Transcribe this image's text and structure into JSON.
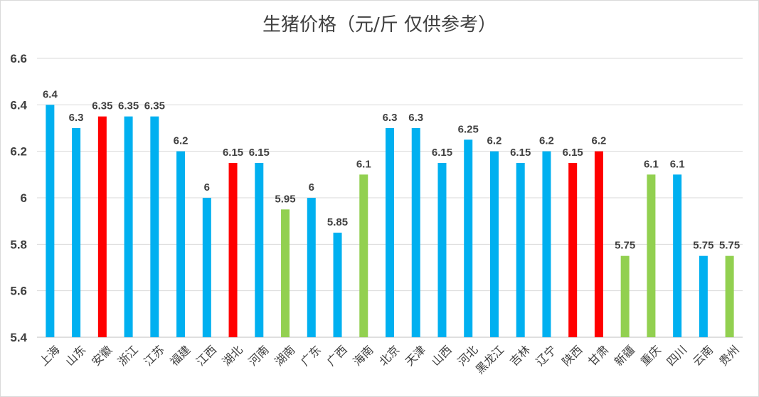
{
  "chart_data": {
    "type": "bar",
    "title": "生猪价格（元/斤 仅供参考）",
    "xlabel": "",
    "ylabel": "",
    "ylim": [
      5.4,
      6.6
    ],
    "yticks": [
      "5.4",
      "5.6",
      "5.8",
      "6",
      "6.2",
      "6.4",
      "6.6"
    ],
    "grid": true,
    "legend": "none",
    "categories": [
      "上海",
      "山东",
      "安徽",
      "浙江",
      "江苏",
      "福建",
      "江西",
      "湖北",
      "河南",
      "湖南",
      "广东",
      "广西",
      "海南",
      "北京",
      "天津",
      "山西",
      "河北",
      "黑龙江",
      "吉林",
      "辽宁",
      "陕西",
      "甘肃",
      "新疆",
      "重庆",
      "四川",
      "云南",
      "贵州"
    ],
    "values": [
      6.4,
      6.3,
      6.35,
      6.35,
      6.35,
      6.2,
      6,
      6.15,
      6.15,
      5.95,
      6,
      5.85,
      6.1,
      6.3,
      6.3,
      6.15,
      6.25,
      6.2,
      6.15,
      6.2,
      6.15,
      6.2,
      5.75,
      6.1,
      6.1,
      5.75,
      5.75
    ],
    "labels": [
      "6.4",
      "6.3",
      "6.35",
      "6.35",
      "6.35",
      "6.2",
      "6",
      "6.15",
      "6.15",
      "5.95",
      "6",
      "5.85",
      "6.1",
      "6.3",
      "6.3",
      "6.15",
      "6.25",
      "6.2",
      "6.15",
      "6.2",
      "6.15",
      "6.2",
      "5.75",
      "6.1",
      "6.1",
      "5.75",
      "5.75"
    ],
    "bar_colors": [
      "#00b0f0",
      "#00b0f0",
      "#ff0000",
      "#00b0f0",
      "#00b0f0",
      "#00b0f0",
      "#00b0f0",
      "#ff0000",
      "#00b0f0",
      "#92d050",
      "#00b0f0",
      "#00b0f0",
      "#92d050",
      "#00b0f0",
      "#00b0f0",
      "#00b0f0",
      "#00b0f0",
      "#00b0f0",
      "#00b0f0",
      "#00b0f0",
      "#ff0000",
      "#ff0000",
      "#92d050",
      "#92d050",
      "#00b0f0",
      "#00b0f0",
      "#92d050"
    ]
  }
}
